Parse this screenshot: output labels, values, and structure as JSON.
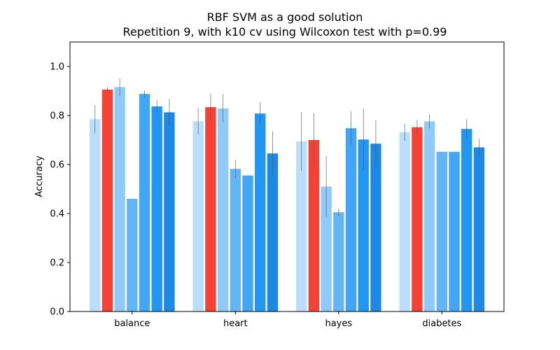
{
  "chart_data": {
    "type": "bar",
    "title": "RBF SVM as a good solution",
    "subtitle": "Repetition 9, with k10 cv using Wilcoxon test with p=0.99",
    "xlabel": "",
    "ylabel": "Accuracy",
    "ylim": [
      0,
      1.1
    ],
    "yticks": [
      "0.0",
      "0.2",
      "0.4",
      "0.6",
      "0.8",
      "1.0"
    ],
    "grid": false,
    "categories": [
      "balance",
      "heart",
      "hayes",
      "diabetes"
    ],
    "series": [
      {
        "color": "#bbdefb",
        "values": [
          0.785,
          0.776,
          0.694,
          0.732
        ],
        "errors": [
          0.058,
          0.054,
          0.12,
          0.035
        ]
      },
      {
        "color": "#f44336",
        "values": [
          0.906,
          0.834,
          0.7,
          0.752
        ],
        "errors": [
          0.01,
          0.055,
          0.11,
          0.03
        ]
      },
      {
        "color": "#90caf9",
        "values": [
          0.916,
          0.829,
          0.51,
          0.776
        ],
        "errors": [
          0.035,
          0.057,
          0.125,
          0.028
        ]
      },
      {
        "color": "#64b5f6",
        "values": [
          0.46,
          0.582,
          0.405,
          0.652
        ],
        "errors": [
          0.0,
          0.037,
          0.015,
          0.0
        ]
      },
      {
        "color": "#42a5f5",
        "values": [
          0.888,
          0.555,
          0.748,
          0.652
        ],
        "errors": [
          0.015,
          0.0,
          0.068,
          0.0
        ]
      },
      {
        "color": "#2196f3",
        "values": [
          0.837,
          0.808,
          0.702,
          0.745
        ],
        "errors": [
          0.025,
          0.045,
          0.125,
          0.04
        ]
      },
      {
        "color": "#1e88e5",
        "values": [
          0.813,
          0.645,
          0.685,
          0.67
        ],
        "errors": [
          0.055,
          0.09,
          0.095,
          0.035
        ]
      }
    ]
  }
}
